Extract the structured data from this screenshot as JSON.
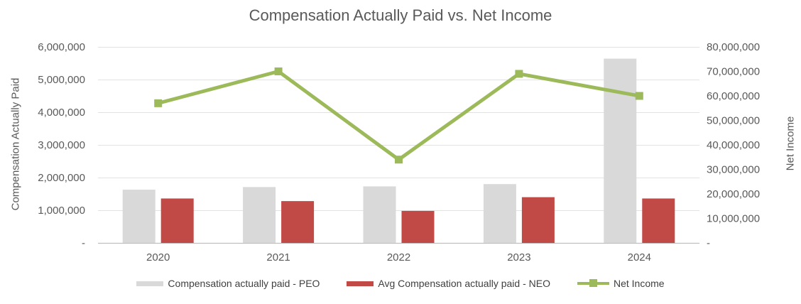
{
  "title": "Compensation Actually Paid vs. Net Income",
  "chart_data": {
    "type": "combo-bar-line",
    "categories": [
      "2020",
      "2021",
      "2022",
      "2023",
      "2024"
    ],
    "series": [
      {
        "name": "Compensation actually paid - PEO",
        "type": "bar",
        "axis": "left",
        "color": "#d9d9d9",
        "values": [
          1630000,
          1710000,
          1730000,
          1800000,
          5640000
        ]
      },
      {
        "name": "Avg Compensation actually paid - NEO",
        "type": "bar",
        "axis": "left",
        "color": "#c24a46",
        "values": [
          1360000,
          1280000,
          980000,
          1400000,
          1360000
        ]
      },
      {
        "name": "Net Income",
        "type": "line",
        "axis": "right",
        "color": "#9cba5a",
        "values": [
          57000000,
          70000000,
          34000000,
          69000000,
          60000000
        ]
      }
    ],
    "left_axis": {
      "title": "Compensation Actually Paid",
      "min": 0,
      "max": 6000000,
      "step": 1000000,
      "tick_labels": [
        "-",
        "1,000,000",
        "2,000,000",
        "3,000,000",
        "4,000,000",
        "5,000,000",
        "6,000,000"
      ]
    },
    "right_axis": {
      "title": "Net Income",
      "min": 0,
      "max": 80000000,
      "step": 10000000,
      "tick_labels": [
        "-",
        "10,000,000",
        "20,000,000",
        "30,000,000",
        "40,000,000",
        "50,000,000",
        "60,000,000",
        "70,000,000",
        "80,000,000"
      ]
    },
    "grid": true,
    "legend_position": "bottom"
  },
  "colors": {
    "background": "#ffffff",
    "gridline": "#e2e2e2",
    "axis_line": "#bfbfbf",
    "tick_text": "#595959",
    "title_text": "#595959",
    "legend_text": "#3f3f3f",
    "bar_peo": "#d9d9d9",
    "bar_neo": "#c24a46",
    "line_net_income": "#9cba5a"
  }
}
